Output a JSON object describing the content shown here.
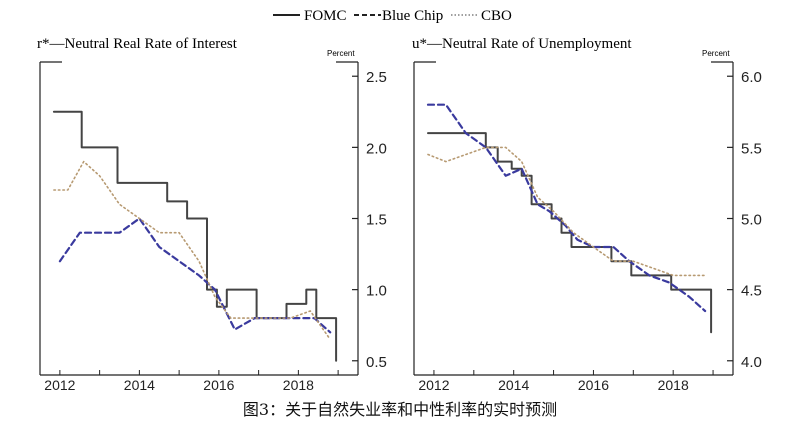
{
  "legend": [
    {
      "name": "FOMC",
      "style": "solid",
      "color": "#444444"
    },
    {
      "name": "Blue Chip",
      "style": "dashed",
      "color": "#3a3a9e"
    },
    {
      "name": "CBO",
      "style": "dotted",
      "color": "#b79a72"
    }
  ],
  "caption": "图3：关于自然失业率和中性利率的实时预测",
  "colors": {
    "fomc": "#444444",
    "blue_chip": "#3a3a9e",
    "cbo": "#b79a72",
    "axis": "#222222"
  },
  "chart_data": [
    {
      "type": "line",
      "title": "r*—Neutral Real Rate of Interest",
      "unit_label": "Percent",
      "xlim": [
        2011.5,
        2019.5
      ],
      "ylim": [
        0.4,
        2.6
      ],
      "x_ticks": [
        2012,
        2014,
        2016,
        2018
      ],
      "y_ticks": [
        0.5,
        1.0,
        1.5,
        2.0,
        2.5
      ],
      "y_tick_labels": [
        "0.5",
        "1.0",
        "1.5",
        "2.0",
        "2.5"
      ],
      "series": [
        {
          "name": "FOMC",
          "step": true,
          "x": [
            2011.85,
            2012.3,
            2012.55,
            2013.0,
            2013.45,
            2013.95,
            2014.45,
            2014.7,
            2014.95,
            2015.2,
            2015.45,
            2015.7,
            2015.95,
            2016.2,
            2016.45,
            2016.7,
            2016.95,
            2017.2,
            2017.45,
            2017.7,
            2017.95,
            2018.2,
            2018.45,
            2018.7,
            2018.95
          ],
          "y": [
            2.25,
            2.25,
            2.0,
            2.0,
            1.75,
            1.75,
            1.75,
            1.62,
            1.62,
            1.5,
            1.5,
            1.0,
            0.88,
            1.0,
            1.0,
            1.0,
            0.8,
            0.8,
            0.8,
            0.9,
            0.9,
            1.0,
            0.8,
            0.8,
            0.5
          ]
        },
        {
          "name": "Blue Chip",
          "x": [
            2012.0,
            2012.5,
            2013.0,
            2013.5,
            2014.0,
            2014.5,
            2015.0,
            2015.5,
            2015.9,
            2016.4,
            2016.9,
            2017.4,
            2017.9,
            2018.4,
            2018.8
          ],
          "y": [
            1.2,
            1.4,
            1.4,
            1.4,
            1.5,
            1.3,
            1.2,
            1.1,
            1.0,
            0.72,
            0.8,
            0.8,
            0.8,
            0.8,
            0.7
          ]
        },
        {
          "name": "CBO",
          "x": [
            2011.85,
            2012.2,
            2012.6,
            2013.0,
            2013.5,
            2014.0,
            2014.5,
            2015.0,
            2015.5,
            2015.9,
            2016.3,
            2016.8,
            2017.3,
            2017.8,
            2018.3,
            2018.8
          ],
          "y": [
            1.7,
            1.7,
            1.9,
            1.8,
            1.6,
            1.5,
            1.4,
            1.4,
            1.2,
            0.95,
            0.8,
            0.8,
            0.8,
            0.8,
            0.85,
            0.65
          ]
        }
      ]
    },
    {
      "type": "line",
      "title": "u*—Neutral Rate of Unemployment",
      "unit_label": "Percent",
      "xlim": [
        2011.5,
        2019.5
      ],
      "ylim": [
        3.9,
        6.1
      ],
      "x_ticks": [
        2012,
        2014,
        2016,
        2018
      ],
      "y_ticks": [
        4.0,
        4.5,
        5.0,
        5.5,
        6.0
      ],
      "y_tick_labels": [
        "4.0",
        "4.5",
        "5.0",
        "5.5",
        "6.0"
      ],
      "series": [
        {
          "name": "FOMC",
          "step": true,
          "x": [
            2011.85,
            2012.3,
            2012.8,
            2013.3,
            2013.6,
            2013.95,
            2014.2,
            2014.45,
            2014.7,
            2014.95,
            2015.2,
            2015.45,
            2015.7,
            2015.95,
            2016.45,
            2016.95,
            2017.45,
            2017.95,
            2018.45,
            2018.95
          ],
          "y": [
            5.6,
            5.6,
            5.6,
            5.5,
            5.4,
            5.35,
            5.3,
            5.1,
            5.1,
            5.0,
            4.9,
            4.8,
            4.8,
            4.8,
            4.7,
            4.6,
            4.6,
            4.5,
            4.5,
            4.2
          ]
        },
        {
          "name": "Blue Chip",
          "x": [
            2011.85,
            2012.3,
            2012.8,
            2013.3,
            2013.8,
            2014.2,
            2014.6,
            2014.9,
            2015.3,
            2015.6,
            2016.0,
            2016.5,
            2016.9,
            2017.4,
            2017.9,
            2018.4,
            2018.8
          ],
          "y": [
            5.8,
            5.8,
            5.6,
            5.5,
            5.3,
            5.35,
            5.1,
            5.05,
            4.95,
            4.85,
            4.8,
            4.8,
            4.7,
            4.6,
            4.55,
            4.45,
            4.35
          ]
        },
        {
          "name": "CBO",
          "x": [
            2011.85,
            2012.3,
            2012.8,
            2013.3,
            2013.8,
            2014.2,
            2014.6,
            2015.0,
            2015.5,
            2016.0,
            2016.5,
            2017.0,
            2017.5,
            2018.0,
            2018.5,
            2018.8
          ],
          "y": [
            5.45,
            5.4,
            5.45,
            5.5,
            5.5,
            5.4,
            5.15,
            5.05,
            4.9,
            4.8,
            4.7,
            4.7,
            4.65,
            4.6,
            4.6,
            4.6
          ]
        }
      ]
    }
  ]
}
